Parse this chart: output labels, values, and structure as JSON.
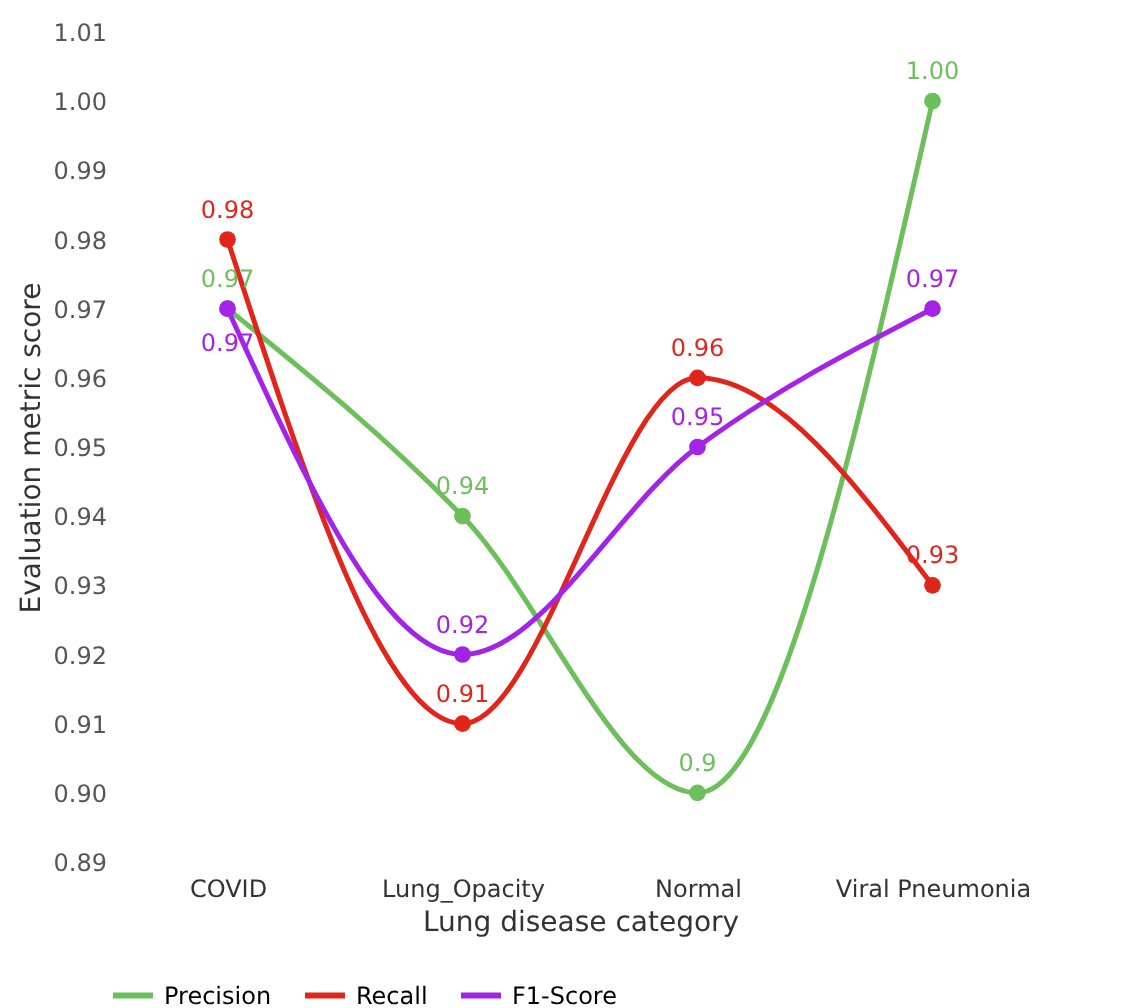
{
  "chart_data": {
    "type": "line",
    "xlabel": "Lung disease category",
    "ylabel": "Evaluation metric score",
    "categories": [
      "COVID",
      "Lung_Opacity",
      "Normal",
      "Viral Pneumonia"
    ],
    "series": [
      {
        "name": "Precision",
        "color": "#6cbf5a",
        "values": [
          0.97,
          0.94,
          0.9,
          1.0
        ],
        "value_labels": [
          "0.97",
          "0.94",
          "0.9",
          "1.00"
        ]
      },
      {
        "name": "Recall",
        "color": "#e0261b",
        "values": [
          0.98,
          0.91,
          0.96,
          0.93
        ],
        "value_labels": [
          "0.98",
          "0.91",
          "0.96",
          "0.93"
        ]
      },
      {
        "name": "F1-Score",
        "color": "#a323e6",
        "values": [
          0.97,
          0.92,
          0.95,
          0.97
        ],
        "value_labels": [
          "0.97",
          "0.92",
          "0.95",
          "0.97"
        ]
      }
    ],
    "ylim": [
      0.89,
      1.01
    ],
    "yticks": [
      0.89,
      {
        "value": 0.9,
        "label": "0.90"
      },
      0.91,
      0.92,
      0.93,
      0.94,
      0.95,
      0.96,
      0.97,
      0.98,
      0.99,
      {
        "value": 1.0,
        "label": "1.00"
      },
      1.01
    ],
    "grid": false,
    "legend": "bottom",
    "marker": "circle",
    "line_style": "solid"
  }
}
